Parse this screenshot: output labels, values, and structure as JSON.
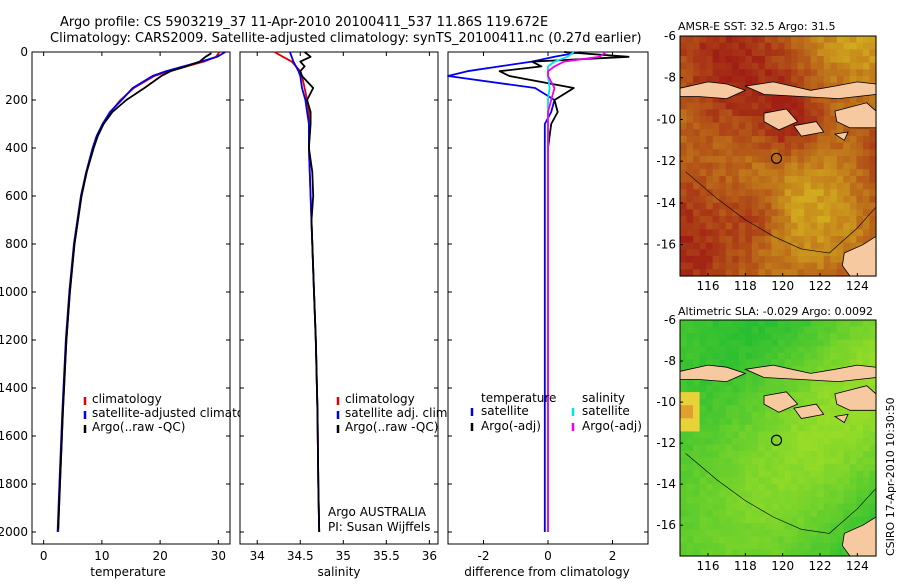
{
  "header": {
    "line1": "Argo profile: CS 5903219_37 11-Apr-2010 20100411_537 11.86S 119.672E",
    "line2": "Climatology: CARS2009. Satellite-adjusted climatology: synTS_20100411.nc (0.27d earlier)"
  },
  "side_label": "CSIRO 17-Apr-2010 10:30:50",
  "colors": {
    "clim": "#e00000",
    "sat": "#0000ee",
    "argo": "#000000",
    "sat_s": "#00e0ee",
    "argo_s": "#ee00ee",
    "land": "#f7c9a0"
  },
  "chart_data": [
    {
      "type": "line",
      "id": "temperature",
      "xlabel": "temperature",
      "ylabel": "",
      "xlim": [
        -2,
        32
      ],
      "ylim": [
        2050,
        0
      ],
      "xticks": [
        0,
        10,
        20,
        30
      ],
      "yticks": [
        0,
        200,
        400,
        600,
        800,
        1000,
        1200,
        1400,
        1600,
        1800,
        2000
      ],
      "legend": [
        "climatology",
        "satellite-adjusted climatology",
        "Argo(..raw -QC)"
      ],
      "series": [
        {
          "name": "climatology",
          "color": "#e00000",
          "depth": [
            0,
            20,
            40,
            60,
            80,
            100,
            150,
            200,
            250,
            300,
            350,
            400,
            500,
            600,
            800,
            1000,
            1200,
            1500,
            1800,
            2000
          ],
          "values": [
            30.2,
            29.6,
            27.5,
            24.5,
            21.5,
            19.0,
            15.5,
            13.2,
            11.5,
            10.2,
            9.2,
            8.5,
            7.4,
            6.5,
            5.3,
            4.5,
            3.9,
            3.3,
            2.8,
            2.5
          ]
        },
        {
          "name": "satellite-adjusted climatology",
          "color": "#0000ee",
          "depth": [
            0,
            20,
            40,
            60,
            80,
            100,
            150,
            200,
            250,
            300,
            350,
            400,
            500,
            600,
            800,
            1000,
            1200,
            1500,
            1800,
            2000
          ],
          "values": [
            31.2,
            29.8,
            27.0,
            24.0,
            21.0,
            18.7,
            15.3,
            13.4,
            11.4,
            10.1,
            9.1,
            8.4,
            7.3,
            6.4,
            5.2,
            4.4,
            3.8,
            3.2,
            2.7,
            2.4
          ]
        },
        {
          "name": "Argo(..raw -QC)",
          "color": "#000000",
          "depth": [
            5,
            20,
            40,
            60,
            80,
            100,
            150,
            200,
            250,
            300,
            350,
            400,
            500,
            600,
            800,
            1000,
            1200,
            1500,
            1800,
            1990
          ],
          "values": [
            28.8,
            27.8,
            26.8,
            24.5,
            21.8,
            20.2,
            17.3,
            14.2,
            11.8,
            10.3,
            9.3,
            8.6,
            7.4,
            6.5,
            5.3,
            4.5,
            3.9,
            3.3,
            2.8,
            2.5
          ]
        }
      ]
    },
    {
      "type": "line",
      "id": "salinity",
      "xlabel": "salinity",
      "ylabel": "",
      "xlim": [
        33.8,
        36.1
      ],
      "ylim": [
        2050,
        0
      ],
      "xticks": [
        34,
        34.5,
        35,
        35.5,
        36
      ],
      "xticklabels": [
        "34",
        "34.5",
        "35",
        "35.5",
        "36"
      ],
      "legend": [
        "climatology",
        "satellite adj. clim.",
        "Argo(..raw -QC)"
      ],
      "annotation1": "Argo AUSTRALIA",
      "annotation2": "PI: Susan Wijffels",
      "series": [
        {
          "name": "climatology",
          "color": "#e00000",
          "depth": [
            0,
            20,
            40,
            60,
            80,
            100,
            150,
            200,
            250,
            300,
            400,
            600,
            800,
            1000,
            1200,
            1500,
            1800,
            2000
          ],
          "values": [
            34.2,
            34.3,
            34.4,
            34.45,
            34.5,
            34.52,
            34.55,
            34.58,
            34.6,
            34.6,
            34.6,
            34.62,
            34.64,
            34.66,
            34.68,
            34.7,
            34.71,
            34.72
          ]
        },
        {
          "name": "satellite adj. clim.",
          "color": "#0000ee",
          "depth": [
            0,
            20,
            40,
            60,
            80,
            100,
            150,
            200,
            250,
            300,
            400,
            600,
            800,
            1000,
            1200,
            1500,
            1800,
            2000
          ],
          "values": [
            34.38,
            34.4,
            34.42,
            34.45,
            34.48,
            34.5,
            34.52,
            34.56,
            34.58,
            34.6,
            34.6,
            34.62,
            34.64,
            34.66,
            34.68,
            34.7,
            34.71,
            34.72
          ]
        },
        {
          "name": "Argo(..raw -QC)",
          "color": "#000000",
          "depth": [
            0,
            20,
            40,
            60,
            80,
            100,
            150,
            200,
            250,
            300,
            400,
            500,
            600,
            700,
            800,
            1000,
            1200,
            1500,
            1800,
            2000
          ],
          "values": [
            34.55,
            34.62,
            34.5,
            34.55,
            34.5,
            34.52,
            34.65,
            34.58,
            34.62,
            34.62,
            34.6,
            34.64,
            34.65,
            34.63,
            34.64,
            34.66,
            34.68,
            34.7,
            34.71,
            34.72
          ]
        }
      ]
    },
    {
      "type": "line",
      "id": "difference",
      "xlabel": "difference from climatology",
      "ylabel": "",
      "xlim": [
        -3.1,
        3.1
      ],
      "ylim": [
        2050,
        0
      ],
      "xticks": [
        -2,
        0,
        2
      ],
      "legend_temp_title": "temperature",
      "legend_sal_title": "salinity",
      "legend_temp": [
        "satellite",
        "Argo(-adj)"
      ],
      "legend_sal": [
        "satellite",
        "Argo(-adj)"
      ],
      "series": [
        {
          "name": "temperature satellite",
          "color": "#0000ee",
          "depth": [
            0,
            20,
            40,
            60,
            80,
            100,
            150,
            200,
            250,
            300,
            400,
            600,
            800,
            1000,
            1500,
            2000
          ],
          "values": [
            1.0,
            0.2,
            -0.5,
            -1.5,
            -2.5,
            -3.1,
            -0.4,
            0.2,
            0.1,
            -0.1,
            -0.1,
            -0.1,
            -0.1,
            -0.1,
            -0.1,
            -0.1
          ]
        },
        {
          "name": "temperature Argo(-adj)",
          "color": "#000000",
          "depth": [
            0,
            20,
            40,
            60,
            80,
            100,
            150,
            200,
            250,
            300,
            400,
            600,
            800,
            1000,
            1500,
            2000
          ],
          "values": [
            0.5,
            2.5,
            -0.5,
            -0.2,
            -1.5,
            -1.2,
            0.8,
            0.2,
            0.3,
            0.1,
            0.0,
            0.0,
            0.0,
            0.0,
            0.0,
            0.0
          ]
        },
        {
          "name": "salinity satellite",
          "color": "#00e0ee",
          "depth": [
            0,
            20,
            40,
            60,
            80,
            100,
            150,
            200,
            250,
            300,
            400,
            600,
            800,
            1000,
            1500,
            2000
          ],
          "values": [
            0.8,
            0.6,
            0.2,
            0.0,
            0.0,
            0.0,
            0.05,
            0.0,
            0.0,
            0.0,
            0.0,
            0.0,
            0.0,
            0.0,
            0.0,
            0.0
          ]
        },
        {
          "name": "salinity Argo(-adj)",
          "color": "#ee00ee",
          "depth": [
            0,
            20,
            40,
            60,
            80,
            100,
            150,
            200,
            250,
            300,
            400,
            600,
            800,
            1000,
            1500,
            2000
          ],
          "values": [
            1.8,
            1.6,
            0.5,
            0.2,
            0.0,
            0.0,
            0.2,
            0.1,
            0.0,
            0.0,
            0.0,
            0.0,
            0.0,
            0.0,
            0.0,
            0.0
          ]
        }
      ]
    },
    {
      "type": "heatmap",
      "id": "sst-map",
      "title": "AMSR-E SST: 32.5  Argo: 31.5",
      "xticks": [
        116,
        118,
        120,
        122,
        124
      ],
      "yticks": [
        -6,
        -8,
        -10,
        -12,
        -14,
        -16
      ],
      "xlim": [
        114.5,
        125
      ],
      "ylim": [
        -17.5,
        -6
      ],
      "marker": [
        119.67,
        -11.86
      ]
    },
    {
      "type": "heatmap",
      "id": "sla-map",
      "title": "Altimetric SLA: -0.029  Argo: 0.0092",
      "xticks": [
        116,
        118,
        120,
        122,
        124
      ],
      "yticks": [
        -6,
        -8,
        -10,
        -12,
        -14,
        -16
      ],
      "xlim": [
        114.5,
        125
      ],
      "ylim": [
        -17.5,
        -6
      ],
      "marker": [
        119.67,
        -11.86
      ]
    }
  ]
}
